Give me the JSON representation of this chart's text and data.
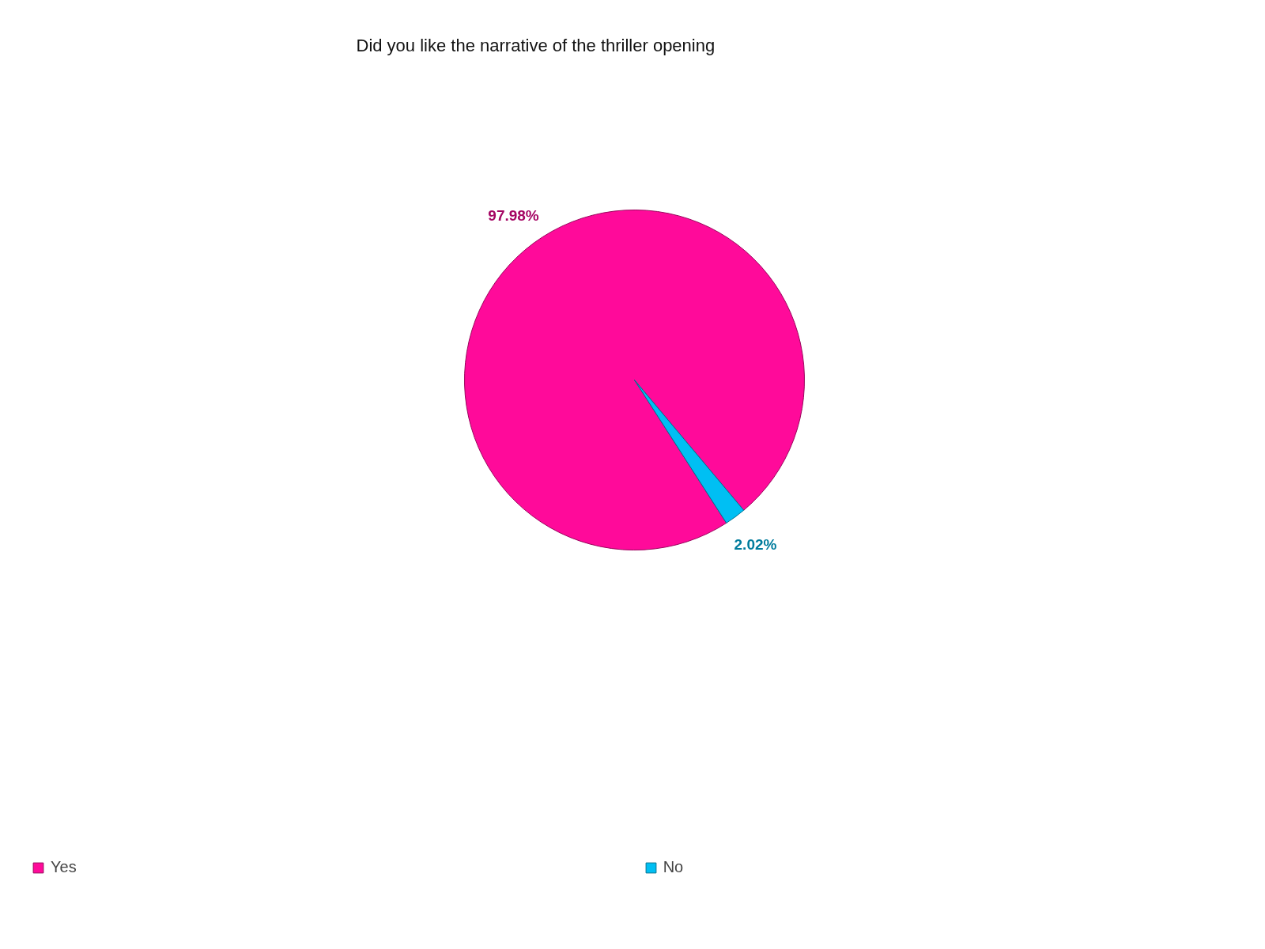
{
  "chart_data": {
    "type": "pie",
    "title": "Did you like the narrative of the thriller opening",
    "categories": [
      "Yes",
      "No"
    ],
    "values": [
      97.98,
      2.02
    ],
    "colors": [
      "#ff0a9a",
      "#00bff3"
    ],
    "value_labels": [
      "97.98%",
      "2.02%"
    ],
    "legend": "bottom"
  }
}
